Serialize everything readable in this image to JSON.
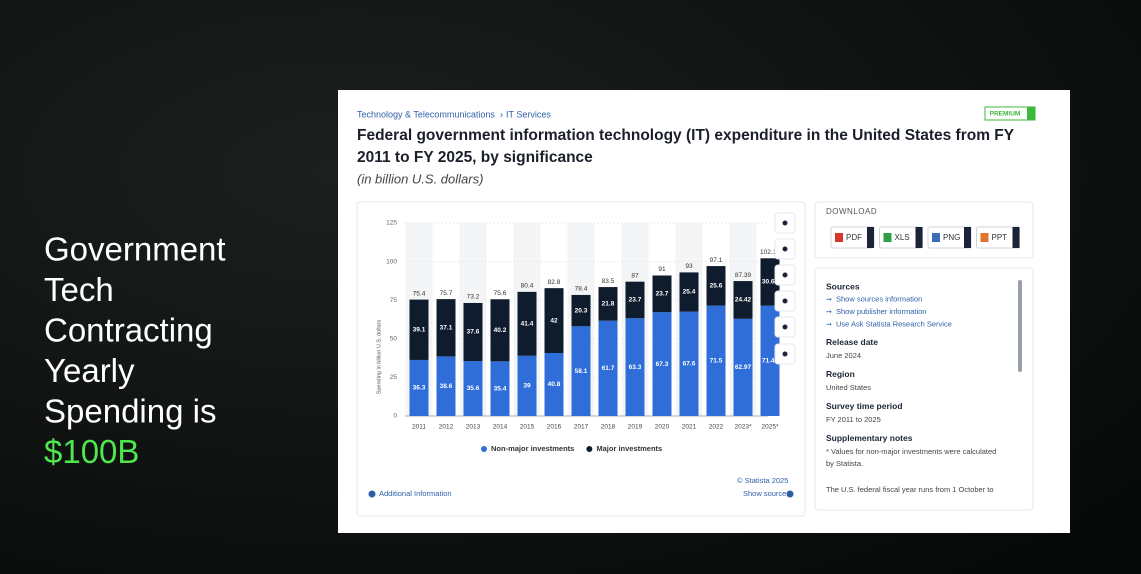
{
  "slide": {
    "heading_lines": [
      "Government",
      "Tech",
      "Contracting",
      "Yearly",
      "Spending is"
    ],
    "highlight": "$100B"
  },
  "breadcrumb": [
    "Technology & Telecommunications",
    "IT Services"
  ],
  "badge": "PREMIUM",
  "chart_data": {
    "type": "stacked_bar",
    "title": "Federal government information technology (IT) expenditure in the United States from FY 2011 to FY 2025, by significance",
    "subtitle": "(in billion U.S. dollars)",
    "y_label": "Spending in billion U.S. dollars",
    "categories": [
      "2011",
      "2012",
      "2013",
      "2014",
      "2015",
      "2016",
      "2017",
      "2018",
      "2019",
      "2020",
      "2021",
      "2022",
      "2023*",
      "2025*"
    ],
    "series": [
      {
        "name": "Non-major investments",
        "color": "#2f6ed8",
        "values": [
          36.3,
          38.6,
          35.6,
          35.4,
          39,
          40.8,
          58.1,
          61.7,
          63.3,
          67.3,
          67.6,
          71.5,
          62.97,
          71.47
        ]
      },
      {
        "name": "Major investments",
        "color": "#0f1c2e",
        "values": [
          39.1,
          37.1,
          37.6,
          40.2,
          41.4,
          42,
          20.3,
          21.8,
          23.7,
          23.7,
          25.4,
          25.6,
          24.42,
          30.67
        ]
      }
    ],
    "totals": [
      75.4,
      75.7,
      73.2,
      75.6,
      80.4,
      82.8,
      78.4,
      83.5,
      87,
      91,
      93,
      97.1,
      87.39,
      102.14
    ],
    "ylim": [
      0,
      125
    ],
    "yticks": [
      0,
      25,
      50,
      75,
      100,
      125
    ],
    "grid": true,
    "copyright": "© Statista 2025",
    "show_source": "Show source",
    "additional_info": "Additional Information"
  },
  "download": {
    "label": "DOWNLOAD",
    "buttons": [
      "PDF",
      "XLS",
      "PNG",
      "PPT"
    ]
  },
  "info": {
    "sources_title": "Sources",
    "links": [
      "Show sources information",
      "Show publisher information",
      "Use Ask Statista Research Service"
    ],
    "fields": [
      {
        "title": "Release date",
        "value": "June 2024"
      },
      {
        "title": "Region",
        "value": "United States"
      },
      {
        "title": "Survey time period",
        "value": "FY 2011 to 2025"
      }
    ],
    "notes_title": "Supplementary notes",
    "notes_lines": [
      "* Values for non-major investments were calculated",
      "by Statista.",
      "The U.S. federal fiscal year runs from 1 October to"
    ]
  }
}
